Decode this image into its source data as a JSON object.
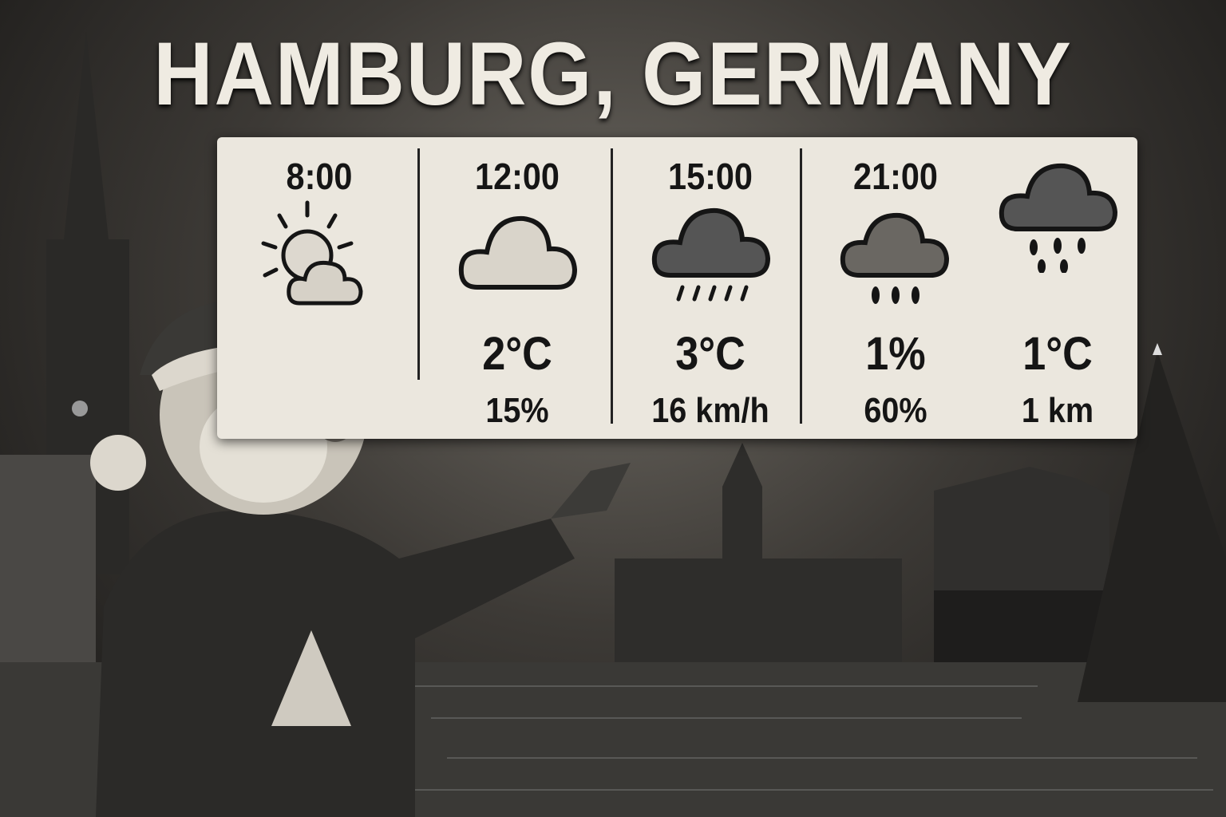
{
  "title": "HAMBURG, GERMANY",
  "forecast": [
    {
      "time": "8:00",
      "icon": "partly-sunny-icon",
      "main": "",
      "sub": ""
    },
    {
      "time": "12:00",
      "icon": "cloud-icon",
      "main": "2°C",
      "sub": "15%"
    },
    {
      "time": "15:00",
      "icon": "rain-cloud-icon",
      "main": "3°C",
      "sub": "16 km/h"
    },
    {
      "time": "21:00",
      "icon": "rain-drops-cloud-icon",
      "main": "1%",
      "sub": "60%"
    },
    {
      "time": "",
      "icon": "heavy-rain-cloud-icon",
      "main": "1°C",
      "sub": "1 km"
    }
  ],
  "colors": {
    "panel": "#ebe7de",
    "text": "#151515",
    "title": "#efebe2"
  }
}
